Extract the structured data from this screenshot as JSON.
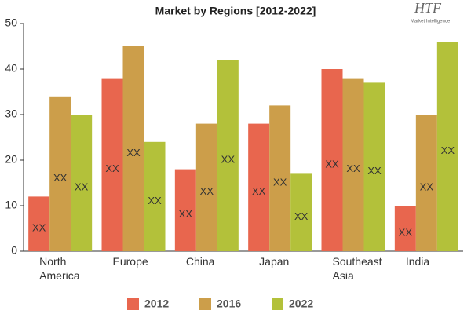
{
  "logo": {
    "text": "HTF",
    "subtext": "Market Intelligence"
  },
  "chart_data": {
    "type": "bar",
    "title": "Market by Regions [2012-2022]",
    "categories": [
      "North America",
      "Europe",
      "China",
      "Japan",
      "Southeast Asia",
      "India"
    ],
    "series": [
      {
        "name": "2012",
        "color": "#e8664e",
        "values": [
          12,
          38,
          18,
          28,
          40,
          10
        ],
        "value_labels": [
          "XX",
          "XX",
          "XX",
          "XX",
          "XX",
          "XX"
        ]
      },
      {
        "name": "2016",
        "color": "#cc9e4a",
        "values": [
          34,
          45,
          28,
          32,
          38,
          30
        ],
        "value_labels": [
          "XX",
          "XX",
          "XX",
          "XX",
          "XX",
          "XX"
        ]
      },
      {
        "name": "2022",
        "color": "#b3c13a",
        "values": [
          30,
          24,
          42,
          17,
          37,
          46
        ],
        "value_labels": [
          "XX",
          "XX",
          "XX",
          "XX",
          "XX",
          "XX"
        ]
      }
    ],
    "ylim": [
      0,
      50
    ],
    "yticks": [
      0,
      10,
      20,
      30,
      40,
      50
    ],
    "grid": false,
    "legend": "bottom"
  }
}
